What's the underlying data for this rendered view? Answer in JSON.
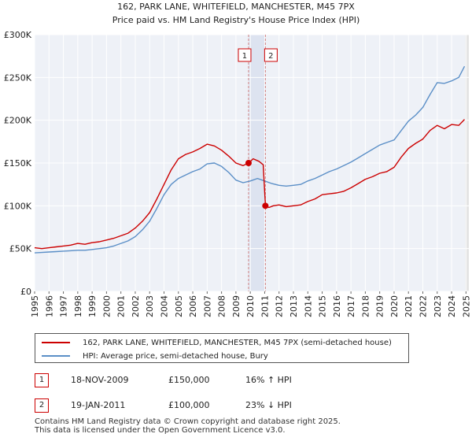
{
  "chart_data": {
    "type": "line",
    "title": "162, PARK LANE, WHITEFIELD, MANCHESTER, M45 7PX",
    "subtitle": "Price paid vs. HM Land Registry's House Price Index (HPI)",
    "xlabel": "",
    "ylabel": "",
    "xlim": [
      1995,
      2025.2
    ],
    "ylim": [
      0,
      300000
    ],
    "yticks": [
      {
        "value": 0,
        "label": "£0"
      },
      {
        "value": 50000,
        "label": "£50K"
      },
      {
        "value": 100000,
        "label": "£100K"
      },
      {
        "value": 150000,
        "label": "£150K"
      },
      {
        "value": 200000,
        "label": "£200K"
      },
      {
        "value": 250000,
        "label": "£250K"
      },
      {
        "value": 300000,
        "label": "£300K"
      }
    ],
    "xticks": [
      "1995",
      "1996",
      "1997",
      "1998",
      "1999",
      "2000",
      "2001",
      "2002",
      "2003",
      "2004",
      "2005",
      "2006",
      "2007",
      "2008",
      "2009",
      "2010",
      "2011",
      "2012",
      "2013",
      "2014",
      "2015",
      "2016",
      "2017",
      "2018",
      "2019",
      "2020",
      "2021",
      "2022",
      "2023",
      "2024",
      "2025"
    ],
    "grid": true,
    "series": [
      {
        "name": "162, PARK LANE, WHITEFIELD, MANCHESTER, M45 7PX (semi-detached house)",
        "color": "#cc0000",
        "x": [
          1995.0,
          1995.5,
          1996.0,
          1996.5,
          1997.0,
          1997.5,
          1998.0,
          1998.5,
          1999.0,
          1999.5,
          2000.0,
          2000.5,
          2001.0,
          2001.5,
          2002.0,
          2002.5,
          2003.0,
          2003.5,
          2004.0,
          2004.5,
          2005.0,
          2005.5,
          2006.0,
          2006.5,
          2007.0,
          2007.5,
          2008.0,
          2008.5,
          2009.0,
          2009.5,
          2009.88,
          2010.2,
          2010.6,
          2010.9,
          2011.05,
          2011.3,
          2011.6,
          2012.0,
          2012.5,
          2013.0,
          2013.5,
          2014.0,
          2014.5,
          2015.0,
          2015.5,
          2016.0,
          2016.5,
          2017.0,
          2017.5,
          2018.0,
          2018.5,
          2019.0,
          2019.5,
          2020.0,
          2020.5,
          2021.0,
          2021.5,
          2022.0,
          2022.5,
          2023.0,
          2023.5,
          2024.0,
          2024.5,
          2024.9
        ],
        "values": [
          51000,
          50000,
          51000,
          52000,
          53000,
          54000,
          56000,
          55000,
          57000,
          58000,
          60000,
          62000,
          65000,
          68000,
          74000,
          82000,
          92000,
          108000,
          125000,
          142000,
          155000,
          160000,
          163000,
          167000,
          172000,
          170000,
          165000,
          158000,
          150000,
          147000,
          150000,
          155000,
          152000,
          148000,
          100000,
          98000,
          100000,
          101000,
          99000,
          100000,
          101000,
          105000,
          108000,
          113000,
          114000,
          115000,
          117000,
          121000,
          126000,
          131000,
          134000,
          138000,
          140000,
          145000,
          157000,
          167000,
          173000,
          178000,
          188000,
          194000,
          190000,
          195000,
          194000,
          201000
        ]
      },
      {
        "name": "HPI: Average price, semi-detached house, Bury",
        "color": "#5b8fc7",
        "x": [
          1995.0,
          1995.5,
          1996.0,
          1996.5,
          1997.0,
          1997.5,
          1998.0,
          1998.5,
          1999.0,
          1999.5,
          2000.0,
          2000.5,
          2001.0,
          2001.5,
          2002.0,
          2002.5,
          2003.0,
          2003.5,
          2004.0,
          2004.5,
          2005.0,
          2005.5,
          2006.0,
          2006.5,
          2007.0,
          2007.5,
          2008.0,
          2008.5,
          2009.0,
          2009.5,
          2010.0,
          2010.5,
          2011.0,
          2011.5,
          2012.0,
          2012.5,
          2013.0,
          2013.5,
          2014.0,
          2014.5,
          2015.0,
          2015.5,
          2016.0,
          2016.5,
          2017.0,
          2017.5,
          2018.0,
          2018.5,
          2019.0,
          2019.5,
          2020.0,
          2020.5,
          2021.0,
          2021.5,
          2022.0,
          2022.5,
          2023.0,
          2023.5,
          2024.0,
          2024.5,
          2024.9
        ],
        "values": [
          45000,
          45500,
          46000,
          46500,
          47000,
          47500,
          48000,
          48000,
          49000,
          50000,
          51000,
          53000,
          56000,
          59000,
          64000,
          72000,
          82000,
          97000,
          113000,
          125000,
          132000,
          136000,
          140000,
          143000,
          149000,
          150000,
          146000,
          139000,
          130000,
          127000,
          129000,
          132000,
          129000,
          126000,
          124000,
          123000,
          124000,
          125000,
          129000,
          132000,
          136000,
          140000,
          143000,
          147000,
          151000,
          156000,
          161000,
          166000,
          171000,
          174000,
          177000,
          188000,
          199000,
          206000,
          215000,
          230000,
          244000,
          243000,
          246000,
          250000,
          263000
        ]
      }
    ],
    "markers": [
      {
        "label": "1",
        "x": 2009.88,
        "y": 150000
      },
      {
        "label": "2",
        "x": 2011.05,
        "y": 100000
      }
    ]
  },
  "legend": {
    "series1_label": "162, PARK LANE, WHITEFIELD, MANCHESTER, M45 7PX (semi-detached house)",
    "series2_label": "HPI: Average price, semi-detached house, Bury",
    "series1_color": "#cc0000",
    "series2_color": "#5b8fc7"
  },
  "sales": [
    {
      "num": "1",
      "date": "18-NOV-2009",
      "price": "£150,000",
      "hpi": "16% ↑ HPI"
    },
    {
      "num": "2",
      "date": "19-JAN-2011",
      "price": "£100,000",
      "hpi": "23% ↓ HPI"
    }
  ],
  "footer": {
    "line1": "Contains HM Land Registry data © Crown copyright and database right 2025.",
    "line2": "This data is licensed under the Open Government Licence v3.0."
  }
}
